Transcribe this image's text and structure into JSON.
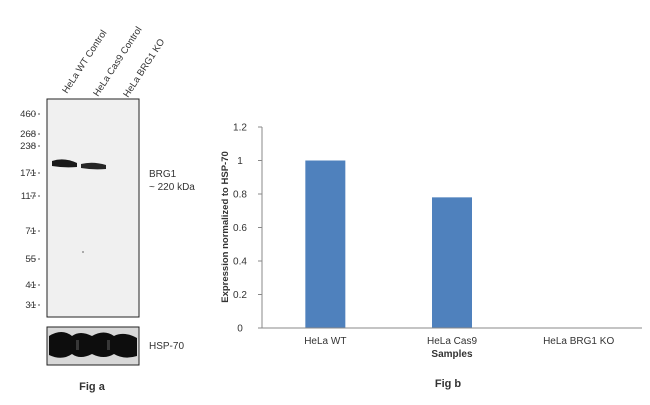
{
  "fig_a": {
    "caption": "Fig a",
    "lanes": [
      "HeLa WT Control",
      "HeLa Cas9 Control",
      "HeLa BRG1 KO"
    ],
    "marker_kda": [
      "460",
      "268",
      "238",
      "171",
      "117",
      "71",
      "55",
      "41",
      "31"
    ],
    "band_label_line1": "BRG1",
    "band_label_line2": "~ 220 kDa",
    "loading_label": "HSP-70"
  },
  "fig_b": {
    "caption": "Fig b"
  },
  "chart_data": {
    "type": "bar",
    "categories": [
      "HeLa WT",
      "HeLa Cas9",
      "HeLa BRG1 KO"
    ],
    "values": [
      1.0,
      0.78,
      0.0
    ],
    "title": "",
    "xlabel": "Samples",
    "ylabel": "Expression  normalized to HSP-70",
    "ylim": [
      0,
      1.2
    ],
    "yticks": [
      0,
      0.2,
      0.4,
      0.6,
      0.8,
      1,
      1.2
    ],
    "grid": false,
    "bar_color": "#4f81bd"
  }
}
